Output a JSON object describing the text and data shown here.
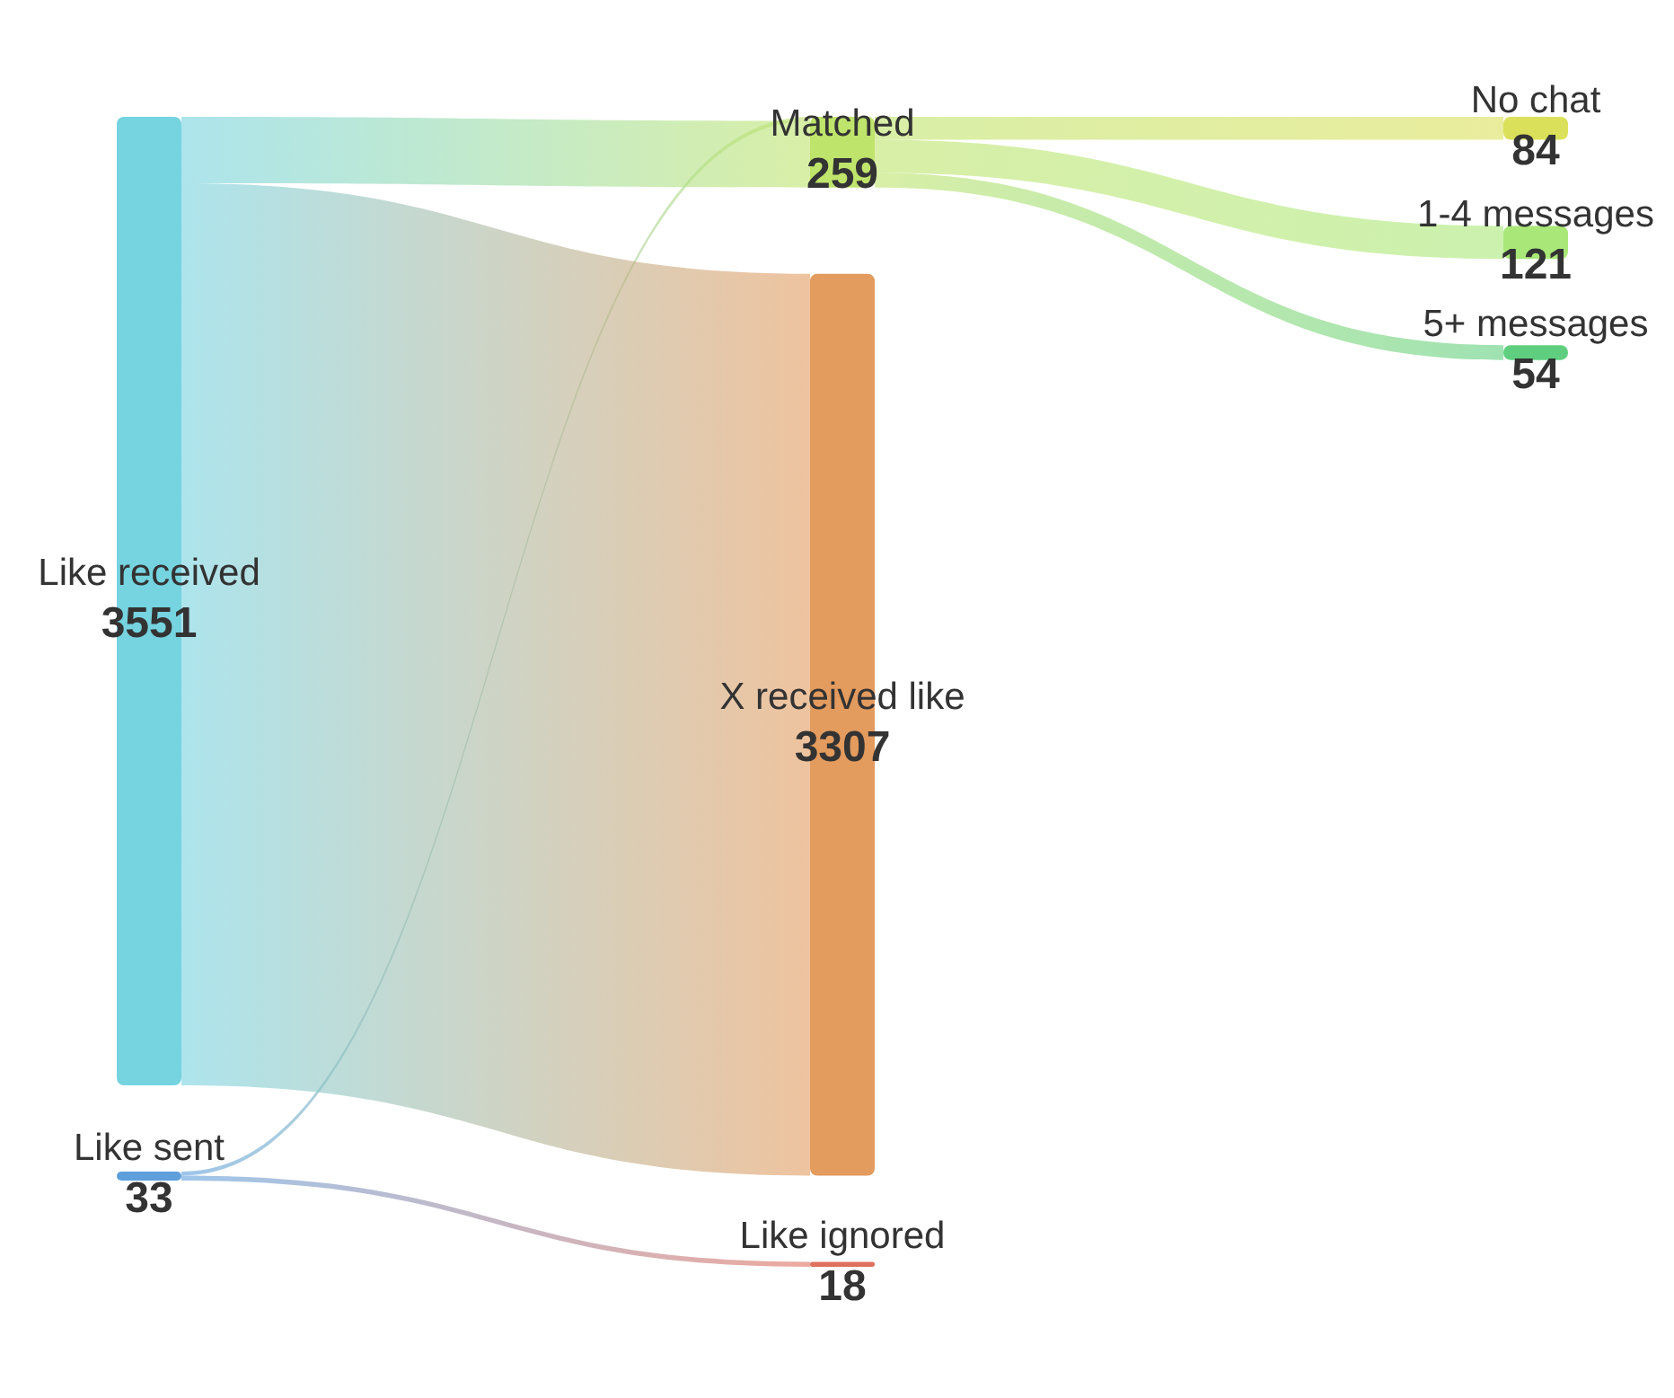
{
  "chart_data": {
    "type": "other",
    "categories": [
      "Like received",
      "Like sent",
      "Matched",
      "X received like",
      "Like ignored",
      "No chat",
      "1-4 messages",
      "5+ messages"
    ],
    "values": [
      3551,
      33,
      259,
      3307,
      18,
      84,
      121,
      54
    ],
    "colors": [
      "#76d3e0",
      "#5e9fdc",
      "#bfe46c",
      "#e39b5e",
      "#e0705e",
      "#dbe05a",
      "#a9e878",
      "#5fcf7f"
    ],
    "data_labels": true
  }
}
